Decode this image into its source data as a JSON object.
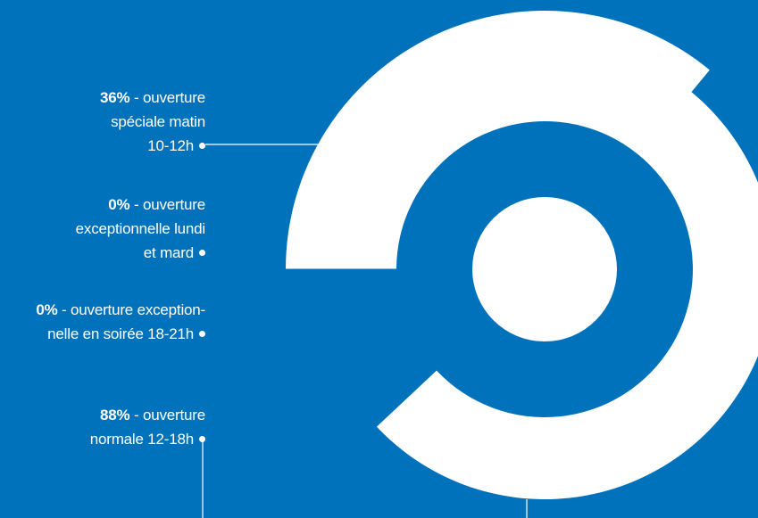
{
  "colors": {
    "background": "#0072bb",
    "foreground": "#ffffff"
  },
  "chart_data": {
    "type": "radial-bar",
    "series": [
      {
        "percent": "36%",
        "value": 36,
        "description": "ouverture spéciale matin 10-12h"
      },
      {
        "percent": "0%",
        "value": 0,
        "description": "ouverture exceptionnelle lundi et mard"
      },
      {
        "percent": "0%",
        "value": 0,
        "description": "ouverture exception-nelle en soirée 18-21h"
      },
      {
        "percent": "88%",
        "value": 88,
        "description": "ouverture normale 12-18h"
      }
    ]
  },
  "labels": [
    {
      "pct": "36%",
      "lines": [
        " - ouverture",
        "spéciale matin",
        "10-12h"
      ]
    },
    {
      "pct": "0%",
      "lines": [
        " - ouverture",
        "exceptionnelle lundi",
        "et mard"
      ]
    },
    {
      "pct": "0%",
      "lines": [
        " - ouverture exception-",
        "nelle en soirée 18-21h"
      ]
    },
    {
      "pct": "88%",
      "lines": [
        " - ouverture",
        "normale 12-18h"
      ]
    }
  ]
}
